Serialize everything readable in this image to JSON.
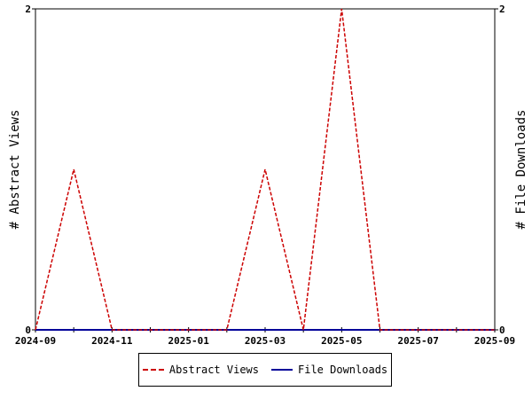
{
  "chart_data": {
    "type": "line",
    "x": [
      "2024-09",
      "2024-10",
      "2024-11",
      "2024-12",
      "2025-01",
      "2025-02",
      "2025-03",
      "2025-04",
      "2025-05",
      "2025-06",
      "2025-07",
      "2025-08",
      "2025-09"
    ],
    "x_ticks": [
      "2024-09",
      "2024-11",
      "2025-01",
      "2025-03",
      "2025-05",
      "2025-07",
      "2025-09"
    ],
    "series": [
      {
        "name": "Abstract Views",
        "axis": "left",
        "color": "#cc0000",
        "style": "dashed",
        "values": [
          0,
          1,
          0,
          0,
          0,
          0,
          1,
          0,
          2,
          0,
          0,
          0,
          0
        ]
      },
      {
        "name": "File Downloads",
        "axis": "right",
        "color": "#000099",
        "style": "solid",
        "values": [
          0,
          0,
          0,
          0,
          0,
          0,
          0,
          0,
          0,
          0,
          0,
          0,
          0
        ]
      }
    ],
    "ylabel_left": "# Abstract Views",
    "ylabel_right": "# File Downloads",
    "ylim_left": [
      0,
      2
    ],
    "ylim_right": [
      0,
      2
    ],
    "y_ticks_left": [
      "0",
      "2"
    ],
    "y_ticks_right": [
      "0",
      "2"
    ],
    "grid": false,
    "legend_position": "bottom"
  }
}
